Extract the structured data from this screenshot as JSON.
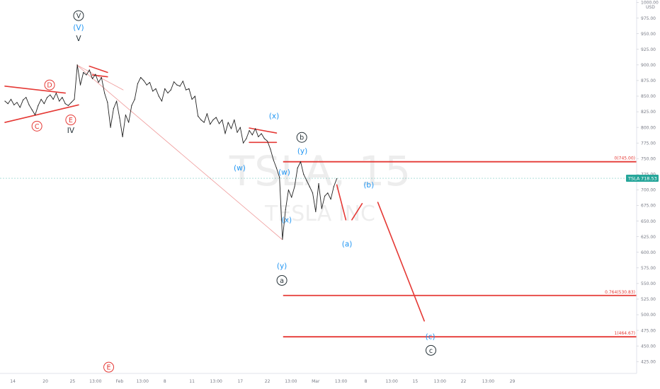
{
  "symbol": "TSLA",
  "currency": "USD",
  "current_price_label": "718.53",
  "watermark": {
    "ticker": "TSLA, 15",
    "company": "TESLA INC"
  },
  "colors": {
    "wave_red": "#e53935",
    "wave_blue": "#2196f3",
    "wave_dark": "#263238",
    "price": "#222222",
    "guide": "#ef9a9a",
    "badge": "#26a69a"
  },
  "chart_data": {
    "type": "line",
    "title": "",
    "xlabel": "",
    "ylabel": "",
    "ylim": [
      406,
      1004
    ],
    "y_ticks": [
      1000,
      975,
      950,
      925,
      900,
      875,
      850,
      825,
      800,
      775,
      750,
      725,
      700,
      675,
      650,
      625,
      600,
      575,
      550,
      525,
      500,
      475,
      450,
      425
    ],
    "x_ticks": [
      {
        "label": "14",
        "i": 1.3
      },
      {
        "label": "20",
        "i": 6.7
      },
      {
        "label": "25",
        "i": 11.2
      },
      {
        "label": "13:00",
        "i": 15.0
      },
      {
        "label": "Feb",
        "i": 19.0
      },
      {
        "label": "13:00",
        "i": 22.8
      },
      {
        "label": "8",
        "i": 26.5
      },
      {
        "label": "11",
        "i": 31.0
      },
      {
        "label": "13:00",
        "i": 35.0
      },
      {
        "label": "17",
        "i": 39.0
      },
      {
        "label": "22",
        "i": 43.5
      },
      {
        "label": "13:00",
        "i": 47.4
      },
      {
        "label": "Mar",
        "i": 51.5
      },
      {
        "label": "13:00",
        "i": 55.7
      },
      {
        "label": "8",
        "i": 59.8
      },
      {
        "label": "13:00",
        "i": 64.1
      },
      {
        "label": "15",
        "i": 68.0
      },
      {
        "label": "13:00",
        "i": 72.1
      },
      {
        "label": "22",
        "i": 76.0
      },
      {
        "label": "13:00",
        "i": 80.1
      },
      {
        "label": "29",
        "i": 84.1
      }
    ],
    "series": [
      {
        "name": "",
        "points": [
          [
            0,
            842
          ],
          [
            0.5,
            838
          ],
          [
            1,
            845
          ],
          [
            1.5,
            836
          ],
          [
            2,
            840
          ],
          [
            2.5,
            832
          ],
          [
            3,
            844
          ],
          [
            3.5,
            848
          ],
          [
            4,
            836
          ],
          [
            4.5,
            828
          ],
          [
            5,
            820
          ],
          [
            5.5,
            835
          ],
          [
            6,
            845
          ],
          [
            6.5,
            838
          ],
          [
            7,
            848
          ],
          [
            7.5,
            852
          ],
          [
            8,
            845
          ],
          [
            8.5,
            855
          ],
          [
            9,
            842
          ],
          [
            9.5,
            848
          ],
          [
            10,
            838
          ],
          [
            10.5,
            835
          ],
          [
            11,
            840
          ],
          [
            11.5,
            845
          ],
          [
            12,
            900
          ],
          [
            12.5,
            868
          ],
          [
            13,
            888
          ],
          [
            13.5,
            884
          ],
          [
            14,
            892
          ],
          [
            14.5,
            878
          ],
          [
            15,
            885
          ],
          [
            15.5,
            872
          ],
          [
            16,
            880
          ],
          [
            16.5,
            855
          ],
          [
            17,
            840
          ],
          [
            17.5,
            800
          ],
          [
            18,
            830
          ],
          [
            18.5,
            842
          ],
          [
            19,
            815
          ],
          [
            19.5,
            785
          ],
          [
            20,
            820
          ],
          [
            20.5,
            808
          ],
          [
            21,
            835
          ],
          [
            21.5,
            845
          ],
          [
            22,
            870
          ],
          [
            22.5,
            880
          ],
          [
            23,
            875
          ],
          [
            23.5,
            868
          ],
          [
            24,
            872
          ],
          [
            24.5,
            858
          ],
          [
            25,
            862
          ],
          [
            25.5,
            850
          ],
          [
            26,
            842
          ],
          [
            26.5,
            862
          ],
          [
            27,
            855
          ],
          [
            27.5,
            860
          ],
          [
            28,
            873
          ],
          [
            28.5,
            868
          ],
          [
            29,
            866
          ],
          [
            29.5,
            874
          ],
          [
            30,
            860
          ],
          [
            30.5,
            862
          ],
          [
            31,
            845
          ],
          [
            31.5,
            850
          ],
          [
            32,
            818
          ],
          [
            32.5,
            812
          ],
          [
            33,
            808
          ],
          [
            33.5,
            822
          ],
          [
            34,
            805
          ],
          [
            34.5,
            812
          ],
          [
            35,
            816
          ],
          [
            35.5,
            806
          ],
          [
            36,
            812
          ],
          [
            36.5,
            790
          ],
          [
            37,
            808
          ],
          [
            37.5,
            798
          ],
          [
            38,
            812
          ],
          [
            38.5,
            792
          ],
          [
            39,
            800
          ],
          [
            39.5,
            775
          ],
          [
            40,
            782
          ],
          [
            40.5,
            795
          ],
          [
            41,
            788
          ],
          [
            41.5,
            798
          ],
          [
            42,
            785
          ],
          [
            42.5,
            790
          ],
          [
            43,
            782
          ],
          [
            43.5,
            778
          ],
          [
            44,
            765
          ],
          [
            44.5,
            748
          ],
          [
            45,
            735
          ],
          [
            45.5,
            720
          ],
          [
            46,
            621
          ],
          [
            46.5,
            668
          ],
          [
            47,
            700
          ],
          [
            47.5,
            688
          ],
          [
            48,
            705
          ],
          [
            48.5,
            735
          ],
          [
            49,
            745
          ],
          [
            49.5,
            725
          ],
          [
            50,
            715
          ],
          [
            50.5,
            705
          ],
          [
            51,
            695
          ],
          [
            51.5,
            665
          ],
          [
            52,
            710
          ],
          [
            52.5,
            670
          ],
          [
            53,
            690
          ],
          [
            53.5,
            695
          ],
          [
            54,
            685
          ],
          [
            54.5,
            705
          ],
          [
            55,
            718
          ]
        ]
      }
    ],
    "horizontal_levels": [
      {
        "label": "0(745.00)",
        "value": 745.0
      },
      {
        "label": "0.764(530.83)",
        "value": 530.83
      },
      {
        "label": "1(464.67)",
        "value": 464.67
      }
    ],
    "guide_lines": [
      [
        [
          11.9,
          900
        ],
        [
          46,
          620
        ]
      ],
      [
        [
          11.9,
          900
        ],
        [
          19.6,
          860
        ]
      ]
    ],
    "patterns": [
      {
        "kind": "triangle",
        "lines": [
          [
            [
              0,
              866
            ],
            [
              10,
              855
            ]
          ],
          [
            [
              0,
              808
            ],
            [
              12.2,
              836
            ]
          ]
        ]
      },
      {
        "kind": "flag",
        "lines": [
          [
            [
              14,
              898
            ],
            [
              17,
              888
            ]
          ],
          [
            [
              14.5,
              884
            ],
            [
              17,
              881
            ]
          ]
        ]
      },
      {
        "kind": "flag",
        "lines": [
          [
            [
              40.5,
              799
            ],
            [
              45,
              791
            ]
          ],
          [
            [
              40.5,
              776
            ],
            [
              45,
              776
            ]
          ]
        ]
      }
    ],
    "projection": [
      [
        [
          55,
          708
        ],
        [
          56.5,
          652
        ]
      ],
      [
        [
          57.5,
          652
        ],
        [
          59.2,
          678
        ]
      ],
      [
        [
          61.8,
          680
        ],
        [
          69.5,
          490
        ]
      ]
    ],
    "labels": [
      {
        "text": "V",
        "i": 12.2,
        "v": 979,
        "style": "circle",
        "color": "wave_dark"
      },
      {
        "text": "(V)",
        "i": 12.2,
        "v": 960,
        "style": "plain",
        "color": "wave_blue"
      },
      {
        "text": "V",
        "i": 12.2,
        "v": 942,
        "style": "plain",
        "color": "wave_dark"
      },
      {
        "text": "D",
        "i": 7.4,
        "v": 868,
        "style": "circle",
        "color": "wave_red"
      },
      {
        "text": "C",
        "i": 5.3,
        "v": 802,
        "style": "circle",
        "color": "wave_red"
      },
      {
        "text": "E",
        "i": 10.9,
        "v": 812,
        "style": "circle",
        "color": "wave_red"
      },
      {
        "text": "IV",
        "i": 10.9,
        "v": 795,
        "style": "plain",
        "color": "wave_dark"
      },
      {
        "text": "(x)",
        "i": 44.6,
        "v": 818,
        "style": "plain",
        "color": "wave_blue"
      },
      {
        "text": "(w)",
        "i": 38.9,
        "v": 735,
        "style": "plain",
        "color": "wave_blue"
      },
      {
        "text": "b",
        "i": 49.2,
        "v": 784,
        "style": "circle",
        "color": "wave_dark"
      },
      {
        "text": "(y)",
        "i": 49.3,
        "v": 762,
        "style": "plain",
        "color": "wave_blue"
      },
      {
        "text": "(w)",
        "i": 46.3,
        "v": 728,
        "style": "plain",
        "color": "wave_blue"
      },
      {
        "text": "(x)",
        "i": 46.7,
        "v": 652,
        "style": "plain",
        "color": "wave_blue"
      },
      {
        "text": "(y)",
        "i": 45.9,
        "v": 578,
        "style": "plain",
        "color": "wave_blue"
      },
      {
        "text": "a",
        "i": 45.9,
        "v": 555,
        "style": "circle",
        "color": "wave_dark"
      },
      {
        "text": "(a)",
        "i": 56.7,
        "v": 613,
        "style": "plain",
        "color": "wave_blue"
      },
      {
        "text": "(b)",
        "i": 60.3,
        "v": 708,
        "style": "plain",
        "color": "wave_blue"
      },
      {
        "text": "(c)",
        "i": 70.5,
        "v": 465,
        "style": "plain",
        "color": "wave_blue"
      },
      {
        "text": "c",
        "i": 70.6,
        "v": 443,
        "style": "circle",
        "color": "wave_dark"
      },
      {
        "text": "E",
        "i": 17.2,
        "v": 416,
        "style": "circle",
        "color": "wave_red"
      }
    ]
  }
}
